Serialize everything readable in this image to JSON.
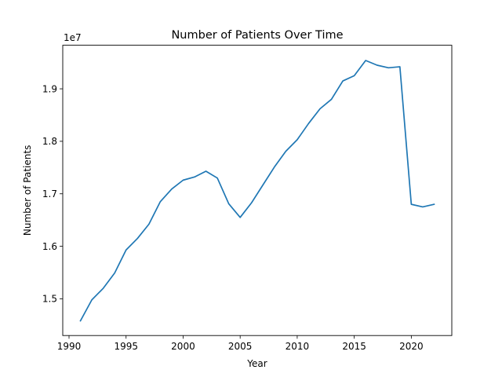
{
  "chart_data": {
    "type": "line",
    "title": "Number of Patients Over Time",
    "xlabel": "Year",
    "ylabel": "Number of Patients",
    "y_offset_label": "1e7",
    "xlim": [
      1989.45,
      2023.55
    ],
    "ylim": [
      14.3,
      19.83
    ],
    "xticks": [
      1990,
      1995,
      2000,
      2005,
      2010,
      2015,
      2020
    ],
    "yticks": [
      1.5,
      1.6,
      1.7,
      1.8,
      1.9
    ],
    "grid": false,
    "legend": "none",
    "series": [
      {
        "color": "#1f77b4",
        "x": [
          1991,
          1992,
          1993,
          1994,
          1995,
          1996,
          1997,
          1998,
          1999,
          2000,
          2001,
          2002,
          2003,
          2004,
          2005,
          2006,
          2007,
          2008,
          2009,
          2010,
          2011,
          2012,
          2013,
          2014,
          2015,
          2016,
          2017,
          2018,
          2019,
          2020,
          2021,
          2022
        ],
        "y": [
          14.58,
          14.98,
          15.2,
          15.49,
          15.93,
          16.15,
          16.42,
          16.85,
          17.09,
          17.26,
          17.32,
          17.43,
          17.3,
          16.81,
          16.55,
          16.83,
          17.17,
          17.51,
          17.81,
          18.03,
          18.34,
          18.62,
          18.8,
          19.15,
          19.25,
          19.54,
          19.45,
          19.4,
          19.42,
          16.8,
          16.75,
          16.8
        ]
      }
    ]
  }
}
